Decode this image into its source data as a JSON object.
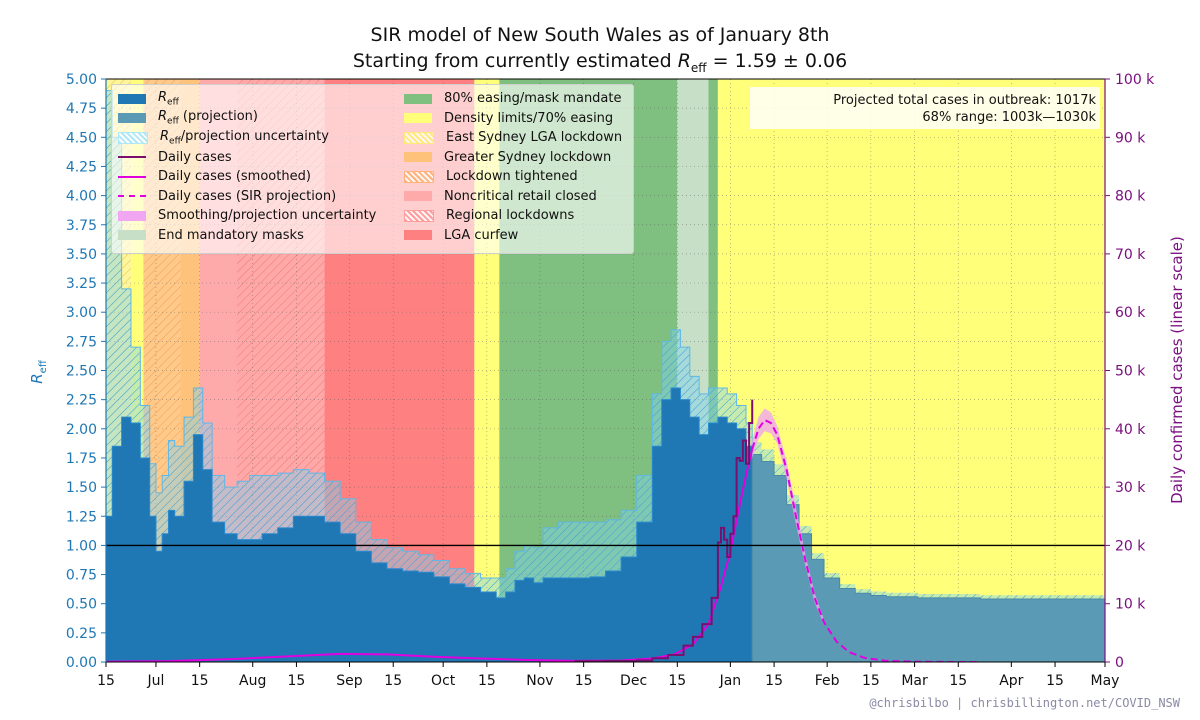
{
  "title": "SIR model of New South Wales as of January 8th",
  "subtitle_prefix": "Starting from currently estimated ",
  "subtitle_symbol": "R",
  "subtitle_sub": "eff",
  "subtitle_suffix": " = 1.59 ± 0.06",
  "credit": "@chrisbilbo | chrisbillington.net/COVID_NSW",
  "projection_box": {
    "line1_label": "Projected total cases in outbreak:",
    "line1_value": "1017k",
    "line2_label": "68% range:",
    "line2_value": "1003k—1030k"
  },
  "colors": {
    "reff_fill": "#1f77b4",
    "reff_projection": "#5a9ab5",
    "uncertainty": "#7fd3f0",
    "daily_cases": "#7b0f70",
    "smoothed": "#e000e0",
    "sir_projection": "#e000e0",
    "smoothing_uncertainty": "#f0a6f0",
    "end_masks": "#c6dfc6",
    "easing_mask_mandate": "#7fbf7f",
    "density_limits": "#ffff7a",
    "east_sydney": "#ffe97a",
    "greater_sydney": "#ffc27a",
    "lockdown_tightened": "#ffb27a",
    "noncritical_retail": "#ffaaaa",
    "regional_lockdowns": "#ff9c9c",
    "lga_curfew": "#ff8080",
    "left_axis": "#1f77b4",
    "right_axis": "#7b0f80"
  },
  "legend": {
    "col1": [
      {
        "label": "R",
        "sub": "eff",
        "suffix": "",
        "type": "fill",
        "color": "#1f77b4",
        "icon": "reff-swatch"
      },
      {
        "label": "R",
        "sub": "eff",
        "suffix": " (projection)",
        "type": "fill",
        "color": "#5a9ab5",
        "icon": "reff-projection-swatch"
      },
      {
        "label": "R",
        "sub": "eff",
        "suffix": "/projection uncertainty",
        "type": "hatch",
        "color": "#aee6fa",
        "icon": "uncertainty-swatch"
      },
      {
        "label": "Daily cases",
        "sub": "",
        "suffix": "",
        "type": "line",
        "color": "#7b0f70",
        "icon": "daily-cases-line"
      },
      {
        "label": "Daily cases (smoothed)",
        "sub": "",
        "suffix": "",
        "type": "line",
        "color": "#e000e0",
        "icon": "smoothed-line"
      },
      {
        "label": "Daily cases (SIR projection)",
        "sub": "",
        "suffix": "",
        "type": "dash",
        "color": "#e000e0",
        "icon": "sir-projection-line"
      },
      {
        "label": "Smoothing/projection uncertainty",
        "sub": "",
        "suffix": "",
        "type": "fill",
        "color": "#f0a6f0",
        "icon": "smoothing-swatch"
      },
      {
        "label": "End mandatory masks",
        "sub": "",
        "suffix": "",
        "type": "fill",
        "color": "#c6dfc6",
        "icon": "end-masks-swatch"
      }
    ],
    "col2": [
      {
        "label": "80% easing/mask mandate",
        "type": "fill",
        "color": "#7fbf7f",
        "icon": "easing-mask-swatch"
      },
      {
        "label": "Density limits/70% easing",
        "type": "fill",
        "color": "#ffff7a",
        "icon": "density-limits-swatch"
      },
      {
        "label": "East Sydney LGA lockdown",
        "type": "hatch",
        "color": "#ffe97a",
        "icon": "east-sydney-swatch"
      },
      {
        "label": "Greater Sydney lockdown",
        "type": "fill",
        "color": "#ffc27a",
        "icon": "greater-sydney-swatch"
      },
      {
        "label": "Lockdown tightened",
        "type": "hatch",
        "color": "#ffb27a",
        "icon": "lockdown-tightened-swatch"
      },
      {
        "label": "Noncritical retail closed",
        "type": "fill",
        "color": "#ffaaaa",
        "icon": "noncritical-retail-swatch"
      },
      {
        "label": "Regional lockdowns",
        "type": "hatch",
        "color": "#ff9c9c",
        "icon": "regional-lockdowns-swatch"
      },
      {
        "label": "LGA curfew",
        "type": "fill",
        "color": "#ff8080",
        "icon": "lga-curfew-swatch"
      }
    ]
  },
  "chart_data": {
    "type": "area",
    "x_domain_days": [
      0,
      320
    ],
    "x_domain_note": "days since 2021-06-15",
    "today_day": 207,
    "x_ticks": [
      {
        "day": 0,
        "label": "15"
      },
      {
        "day": 16,
        "label": "Jul"
      },
      {
        "day": 30,
        "label": "15"
      },
      {
        "day": 47,
        "label": "Aug"
      },
      {
        "day": 61,
        "label": "15"
      },
      {
        "day": 78,
        "label": "Sep"
      },
      {
        "day": 92,
        "label": "15"
      },
      {
        "day": 108,
        "label": "Oct"
      },
      {
        "day": 122,
        "label": "15"
      },
      {
        "day": 139,
        "label": "Nov"
      },
      {
        "day": 153,
        "label": "15"
      },
      {
        "day": 169,
        "label": "Dec"
      },
      {
        "day": 183,
        "label": "15"
      },
      {
        "day": 200,
        "label": "Jan"
      },
      {
        "day": 214,
        "label": "15"
      },
      {
        "day": 231,
        "label": "Feb"
      },
      {
        "day": 245,
        "label": "15"
      },
      {
        "day": 259,
        "label": "Mar"
      },
      {
        "day": 273,
        "label": "15"
      },
      {
        "day": 290,
        "label": "Apr"
      },
      {
        "day": 304,
        "label": "15"
      },
      {
        "day": 320,
        "label": "May"
      }
    ],
    "y_left": {
      "label": "R",
      "label_sub": "eff",
      "lim": [
        0,
        5
      ],
      "ticks": [
        "0.00",
        "0.25",
        "0.50",
        "0.75",
        "1.00",
        "1.25",
        "1.50",
        "1.75",
        "2.00",
        "2.25",
        "2.50",
        "2.75",
        "3.00",
        "3.25",
        "3.50",
        "3.75",
        "4.00",
        "4.25",
        "4.50",
        "4.75",
        "5.00"
      ]
    },
    "y_right": {
      "label": "Daily confirmed cases (linear scale)",
      "lim": [
        0,
        100000
      ],
      "ticks": [
        "0",
        "10 k",
        "20 k",
        "30 k",
        "40 k",
        "50 k",
        "60 k",
        "70 k",
        "80 k",
        "90 k",
        "100 k"
      ]
    },
    "reference_line": 1.0,
    "restriction_periods": [
      {
        "from": 0,
        "to": 8,
        "kind": "east_sydney"
      },
      {
        "from": 8,
        "to": 12,
        "kind": "density_limits"
      },
      {
        "from": 12,
        "to": 30,
        "kind": "greater_sydney"
      },
      {
        "from": 12,
        "to": 24,
        "kind": "lockdown_tightened"
      },
      {
        "from": 30,
        "to": 70,
        "kind": "noncritical_retail"
      },
      {
        "from": 42,
        "to": 70,
        "kind": "regional_lockdowns"
      },
      {
        "from": 70,
        "to": 118,
        "kind": "lga_curfew"
      },
      {
        "from": 118,
        "to": 126,
        "kind": "density_limits"
      },
      {
        "from": 126,
        "to": 183,
        "kind": "easing_mask_mandate"
      },
      {
        "from": 183,
        "to": 193,
        "kind": "end_masks"
      },
      {
        "from": 193,
        "to": 196,
        "kind": "easing_mask_mandate"
      },
      {
        "from": 196,
        "to": 320,
        "kind": "density_limits"
      }
    ],
    "reff_series": {
      "x": [
        0,
        2,
        5,
        8,
        11,
        14,
        16,
        18,
        20,
        22,
        25,
        28,
        31,
        34,
        38,
        42,
        46,
        50,
        55,
        60,
        65,
        70,
        75,
        80,
        85,
        90,
        95,
        100,
        105,
        110,
        115,
        120,
        125,
        128,
        131,
        134,
        137,
        140,
        145,
        150,
        155,
        160,
        165,
        170,
        175,
        178,
        181,
        184,
        187,
        190,
        193,
        196,
        199,
        202,
        205,
        207
      ],
      "y": [
        1.25,
        1.85,
        2.1,
        2.05,
        1.75,
        1.25,
        0.95,
        1.1,
        1.3,
        1.25,
        1.55,
        1.95,
        1.65,
        1.2,
        1.1,
        1.05,
        1.05,
        1.1,
        1.15,
        1.25,
        1.25,
        1.2,
        1.1,
        0.95,
        0.85,
        0.8,
        0.78,
        0.77,
        0.73,
        0.67,
        0.64,
        0.6,
        0.55,
        0.6,
        0.7,
        0.72,
        0.68,
        0.72,
        0.72,
        0.72,
        0.73,
        0.78,
        0.9,
        1.2,
        1.85,
        2.25,
        2.35,
        2.25,
        2.1,
        1.95,
        2.05,
        2.1,
        2.05,
        2.0,
        1.85,
        1.78
      ]
    },
    "reff_uncertainty_upper": {
      "x": [
        0,
        2,
        5,
        8,
        11,
        14,
        16,
        18,
        20,
        22,
        25,
        28,
        31,
        34,
        38,
        42,
        46,
        50,
        55,
        60,
        65,
        70,
        75,
        80,
        85,
        90,
        95,
        100,
        105,
        110,
        115,
        120,
        125,
        128,
        131,
        134,
        137,
        140,
        145,
        150,
        155,
        160,
        165,
        170,
        175,
        178,
        181,
        184,
        187,
        190,
        193,
        196,
        199,
        202,
        205,
        207
      ],
      "y": [
        4.9,
        4.5,
        3.2,
        2.7,
        2.2,
        1.7,
        1.45,
        1.6,
        1.9,
        1.85,
        2.1,
        2.35,
        2.05,
        1.6,
        1.5,
        1.55,
        1.6,
        1.6,
        1.62,
        1.65,
        1.62,
        1.55,
        1.4,
        1.2,
        1.05,
        0.98,
        0.95,
        0.92,
        0.87,
        0.8,
        0.76,
        0.72,
        0.72,
        0.8,
        0.95,
        1.0,
        0.98,
        1.15,
        1.2,
        1.2,
        1.2,
        1.22,
        1.3,
        1.6,
        2.3,
        2.75,
        2.85,
        2.7,
        2.45,
        2.3,
        2.35,
        2.35,
        2.3,
        2.2,
        2.05,
        1.98
      ]
    },
    "reff_projection": {
      "x": [
        207,
        210,
        214,
        218,
        222,
        226,
        230,
        235,
        240,
        245,
        250,
        260,
        280,
        300,
        320
      ],
      "y": [
        1.78,
        1.72,
        1.6,
        1.35,
        1.1,
        0.88,
        0.72,
        0.63,
        0.59,
        0.57,
        0.56,
        0.55,
        0.54,
        0.54,
        0.54
      ]
    },
    "daily_cases": {
      "x": [
        150,
        160,
        170,
        175,
        180,
        185,
        188,
        191,
        194,
        196,
        197,
        198,
        199,
        200,
        201,
        202,
        203,
        204,
        205,
        206,
        207
      ],
      "y": [
        120,
        180,
        280,
        650,
        1200,
        2800,
        4300,
        6500,
        11000,
        20500,
        23000,
        21000,
        18000,
        22000,
        25000,
        35000,
        34500,
        38000,
        34000,
        41000,
        45000
      ]
    },
    "daily_cases_smoothed": {
      "x": [
        0,
        20,
        40,
        60,
        75,
        90,
        105,
        120,
        135,
        150,
        165,
        175,
        182,
        188,
        193,
        197,
        200,
        203,
        205,
        207
      ],
      "y": [
        50,
        150,
        500,
        1000,
        1400,
        1300,
        900,
        600,
        350,
        200,
        250,
        600,
        1300,
        3000,
        6500,
        13000,
        19000,
        27000,
        32000,
        36500
      ]
    },
    "sir_projection": {
      "x": [
        207,
        209,
        211,
        213,
        215,
        218,
        221,
        224,
        227,
        230,
        234,
        238,
        243,
        250,
        260,
        270,
        280
      ],
      "y": [
        36500,
        40000,
        41500,
        41000,
        39000,
        33000,
        25000,
        17500,
        11000,
        6800,
        3500,
        1700,
        700,
        200,
        40,
        10,
        0
      ]
    },
    "sir_projection_band": {
      "x": [
        207,
        209,
        211,
        213,
        215,
        218,
        221,
        224,
        227,
        230
      ],
      "upper": [
        38000,
        42000,
        43500,
        42800,
        40500,
        34500,
        26500,
        18500,
        11800,
        7200
      ],
      "lower": [
        35000,
        38200,
        39600,
        39200,
        37500,
        31500,
        23600,
        16500,
        10200,
        6400
      ]
    }
  }
}
